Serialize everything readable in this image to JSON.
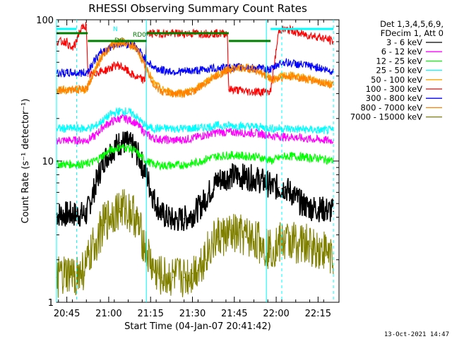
{
  "chart_data": {
    "type": "line",
    "title": "RHESSI Observing Summary Count Rates",
    "xlabel": "Start Time (04-Jan-07 20:41:42)",
    "ylabel": "Count Rate (s⁻¹ detector⁻¹)",
    "yscale": "log",
    "ylim": [
      1,
      100
    ],
    "xlim_minutes": [
      -3.7,
      97.5
    ],
    "x_ticks": [
      "20:45",
      "21:00",
      "21:15",
      "21:30",
      "21:45",
      "22:00",
      "22:15"
    ],
    "y_ticks": [
      "1",
      "10",
      "100"
    ],
    "legend_header": [
      "Det 1,3,4,5,6,9,",
      "FDecim 1, Att 0"
    ],
    "footer": "13-Oct-2021 14:47",
    "flags": [
      {
        "label": "N",
        "color": "#00ffff"
      },
      {
        "label": "RD0",
        "color": "#008000"
      },
      {
        "label": "DG",
        "color": "#008000"
      }
    ],
    "series": [
      {
        "name": "3 - 6 keV",
        "color": "#000000",
        "x": [
          -3.7,
          0,
          5,
          7,
          10,
          13,
          16,
          19,
          21,
          24,
          26,
          28.5,
          31,
          34,
          38,
          42,
          45,
          48,
          51,
          54,
          58,
          61,
          64,
          67,
          70,
          72.5,
          73,
          76,
          78,
          81,
          84,
          87,
          90,
          93,
          95.5
        ],
        "y": [
          4.2,
          4.2,
          4.2,
          4.2,
          6.5,
          10,
          12,
          13.5,
          13.5,
          12.5,
          10.5,
          8,
          5.5,
          4.2,
          3.8,
          3.9,
          4.2,
          4.8,
          6,
          7.3,
          7.8,
          7.9,
          7.7,
          7.6,
          7.2,
          6.8,
          6.6,
          6.5,
          6.5,
          5.8,
          5.0,
          4.7,
          4.6,
          4.5,
          4.4
        ]
      },
      {
        "name": "6 - 12 keV",
        "color": "#ff00ff",
        "x": [
          -3.7,
          0,
          5,
          7,
          10,
          13,
          16,
          19,
          21,
          24,
          26,
          28.5,
          31,
          34,
          38,
          42,
          45,
          48,
          51,
          54,
          58,
          61,
          64,
          67,
          70,
          72.5,
          73,
          76,
          78,
          81,
          84,
          87,
          90,
          93,
          95.5
        ],
        "y": [
          14,
          14,
          14,
          14,
          15,
          17.5,
          19,
          20,
          20,
          19,
          17.5,
          15.5,
          14.5,
          14.2,
          14,
          14.2,
          14.5,
          15,
          15.5,
          16,
          16,
          16,
          15.8,
          15.8,
          15.5,
          15.2,
          15,
          15,
          14.8,
          14.8,
          14.5,
          14.3,
          14.2,
          14,
          14
        ]
      },
      {
        "name": "12 - 25 keV",
        "color": "#00ff00",
        "x": [
          -3.7,
          0,
          5,
          7,
          10,
          13,
          16,
          19,
          21,
          24,
          26,
          28.5,
          31,
          34,
          38,
          42,
          45,
          48,
          51,
          54,
          58,
          61,
          64,
          67,
          70,
          72.5,
          73,
          76,
          78,
          81,
          84,
          87,
          90,
          93,
          95.5
        ],
        "y": [
          9.5,
          9.5,
          9.5,
          9.5,
          10,
          11,
          12,
          12.5,
          12.5,
          12,
          11,
          10,
          9.5,
          9.3,
          9.3,
          9.4,
          9.6,
          10,
          10.5,
          10.8,
          11,
          11,
          10.8,
          10.8,
          10.5,
          10.2,
          10,
          10.5,
          10.8,
          10.8,
          10.7,
          10.5,
          10.5,
          10.2,
          10
        ]
      },
      {
        "name": "25 - 50 keV",
        "color": "#00ffff",
        "x": [
          -3.7,
          0,
          5,
          7,
          10,
          13,
          16,
          19,
          21,
          24,
          26,
          28.5,
          31,
          34,
          38,
          42,
          45,
          48,
          51,
          54,
          58,
          61,
          64,
          67,
          70,
          72.5,
          73,
          76,
          78,
          81,
          84,
          87,
          90,
          93,
          95.5
        ],
        "y": [
          17,
          17,
          17,
          17,
          17.5,
          19.5,
          21.5,
          22.5,
          22.5,
          21.5,
          19.5,
          17.5,
          17,
          17,
          17,
          17,
          17,
          17.2,
          17.5,
          17.8,
          17.8,
          17.8,
          17.6,
          17.5,
          17.3,
          17.2,
          17,
          17,
          17,
          16.8,
          16.8,
          16.7,
          16.5,
          16.5,
          16.4
        ]
      },
      {
        "name": "50 - 100 keV",
        "color": "#ffa500",
        "x": [
          -3.7,
          0,
          5,
          7,
          10,
          13,
          16,
          19,
          21,
          24,
          26,
          28.5,
          31,
          34,
          38,
          42,
          45,
          48,
          51,
          54,
          58,
          61,
          64,
          67,
          70,
          72.5,
          73,
          76,
          78,
          81,
          84,
          87,
          90,
          93,
          95.5
        ],
        "y": [
          32,
          32,
          32,
          32,
          45,
          58,
          66,
          70,
          70,
          66,
          58,
          46,
          36,
          32,
          30.5,
          30.5,
          31.5,
          34,
          38,
          41,
          45,
          46,
          46,
          45,
          42,
          39,
          38,
          39,
          40,
          40,
          39,
          38,
          37,
          36,
          35
        ]
      },
      {
        "name": "100 - 300 keV",
        "color": "#ff0000",
        "x": [
          -3.7,
          0,
          1.5,
          3,
          4,
          4.5,
          5.5,
          7,
          7.5,
          10,
          14,
          18,
          20,
          24,
          28,
          28.5,
          30,
          40,
          50,
          57.5,
          58,
          60,
          65,
          70,
          72.5,
          73,
          76,
          78,
          81,
          83,
          86,
          90,
          94,
          95.5
        ],
        "y": [
          70,
          70,
          62,
          66,
          78,
          82,
          87,
          92,
          40,
          42,
          44,
          48,
          46,
          40,
          37,
          80,
          80,
          80,
          80,
          80,
          32,
          32,
          31,
          31,
          31,
          31,
          85,
          85,
          84,
          80,
          78,
          76,
          72,
          70
        ]
      },
      {
        "name": "300 - 800 keV",
        "color": "#0000ff",
        "x": [
          -3.7,
          0,
          5,
          7,
          10,
          13,
          16,
          19,
          21,
          24,
          26,
          28.5,
          31,
          34,
          38,
          42,
          45,
          48,
          51,
          54,
          58,
          61,
          64,
          67,
          70,
          72.5,
          73,
          76,
          78,
          81,
          84,
          87,
          90,
          93,
          95.5
        ],
        "y": [
          42,
          42,
          42,
          42,
          52,
          60,
          65,
          68,
          68,
          66,
          60,
          52,
          46,
          44,
          43,
          43,
          43.5,
          44,
          45,
          45.5,
          46,
          46,
          46,
          45.5,
          45,
          44.5,
          44,
          49,
          50,
          49,
          48,
          47,
          46,
          44,
          43
        ]
      },
      {
        "name": "800 - 7000 keV",
        "color": "#ff8000",
        "x": [
          -3.7,
          0,
          5,
          7,
          10,
          13,
          16,
          19,
          21,
          24,
          26,
          28.5,
          31,
          34,
          38,
          42,
          45,
          48,
          51,
          54,
          58,
          61,
          64,
          67,
          70,
          72.5,
          73,
          76,
          78,
          81,
          84,
          87,
          90,
          93,
          95.5
        ],
        "y": [
          32,
          32,
          32,
          32,
          44,
          57,
          65,
          69,
          69,
          65,
          57,
          45,
          35,
          31,
          30,
          30,
          31,
          33.5,
          37.5,
          40.5,
          44.5,
          45.5,
          45.5,
          44.5,
          41.5,
          38.5,
          37.5,
          38.5,
          39.5,
          39.5,
          38.5,
          37.5,
          36.5,
          35.5,
          34.5
        ]
      },
      {
        "name": "7000 - 15000 keV",
        "color": "#808000",
        "x": [
          -3.7,
          0,
          5,
          7,
          10,
          13,
          16,
          19,
          21,
          24,
          26,
          28.5,
          31,
          34,
          38,
          42,
          45,
          48,
          51,
          54,
          58,
          61,
          64,
          67,
          70,
          72.5,
          73,
          76,
          78,
          81,
          84,
          87,
          90,
          93,
          95.5
        ],
        "y": [
          1.5,
          1.5,
          1.6,
          1.8,
          2.6,
          3.5,
          4.2,
          4.6,
          4.6,
          4.2,
          3.3,
          2.3,
          1.7,
          1.5,
          1.5,
          1.5,
          1.6,
          1.9,
          2.4,
          2.9,
          3.0,
          3.0,
          2.9,
          2.8,
          2.6,
          2.4,
          2.4,
          2.6,
          2.7,
          2.7,
          2.6,
          2.5,
          2.4,
          2.3,
          2.2
        ]
      }
    ],
    "flag_segments": {
      "N": [
        [
          -3.7,
          3.5
        ],
        [
          73,
          95.5
        ]
      ],
      "RD0": [
        [
          -3.7,
          7.5
        ],
        [
          28.5,
          58
        ]
      ],
      "DG": [
        [
          7.5,
          28.5
        ],
        [
          58,
          73
        ]
      ]
    },
    "orbit_lines_solid": [
      -3.7,
      28.5,
      71.5
    ],
    "orbit_lines_dashed": [
      3.5,
      77,
      95.5
    ]
  }
}
